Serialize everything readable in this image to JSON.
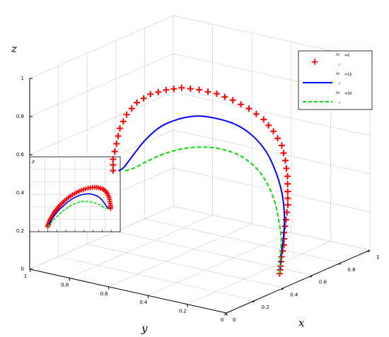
{
  "chart_data": {
    "type": "line",
    "axes": {
      "x": {
        "label": "x",
        "range": [
          0,
          1
        ],
        "ticks": [
          "0",
          "0.2",
          "0.4",
          "0.6",
          "0.8",
          "1"
        ]
      },
      "y": {
        "label": "y",
        "range": [
          0,
          1
        ],
        "ticks": [
          "0",
          "0.2",
          "0.4",
          "0.6",
          "0.8",
          "1"
        ]
      },
      "z": {
        "label": "z",
        "range": [
          0,
          1
        ],
        "ticks": [
          "0",
          "0.2",
          "0.4",
          "0.6",
          "0.8",
          "1"
        ]
      }
    },
    "grid": true,
    "legend_position": "top-right",
    "series": [
      {
        "name": "M_r = 0",
        "color": "#ff0000",
        "style": "markers",
        "marker": "plus",
        "points": [
          [
            0.44,
            0.05,
            0.05
          ],
          [
            0.46,
            0.06,
            0.08
          ],
          [
            0.48,
            0.07,
            0.12
          ],
          [
            0.51,
            0.08,
            0.17
          ],
          [
            0.54,
            0.1,
            0.22
          ],
          [
            0.58,
            0.12,
            0.27
          ],
          [
            0.62,
            0.14,
            0.33
          ],
          [
            0.66,
            0.17,
            0.38
          ],
          [
            0.7,
            0.2,
            0.44
          ],
          [
            0.74,
            0.24,
            0.5
          ],
          [
            0.77,
            0.28,
            0.56
          ],
          [
            0.78,
            0.33,
            0.62
          ],
          [
            0.78,
            0.38,
            0.67
          ],
          [
            0.76,
            0.44,
            0.72
          ],
          [
            0.73,
            0.5,
            0.76
          ],
          [
            0.7,
            0.56,
            0.79
          ],
          [
            0.66,
            0.62,
            0.81
          ],
          [
            0.62,
            0.68,
            0.82
          ],
          [
            0.58,
            0.73,
            0.81
          ],
          [
            0.54,
            0.78,
            0.79
          ],
          [
            0.5,
            0.82,
            0.75
          ],
          [
            0.47,
            0.85,
            0.69
          ],
          [
            0.45,
            0.87,
            0.62
          ],
          [
            0.44,
            0.88,
            0.54
          ],
          [
            0.43,
            0.89,
            0.46
          ],
          [
            0.43,
            0.89,
            0.4
          ]
        ]
      },
      {
        "name": "M_r = 15",
        "color": "#0000ff",
        "style": "solid",
        "points": [
          [
            0.44,
            0.05,
            0.05
          ],
          [
            0.49,
            0.08,
            0.12
          ],
          [
            0.55,
            0.11,
            0.2
          ],
          [
            0.61,
            0.15,
            0.28
          ],
          [
            0.66,
            0.2,
            0.37
          ],
          [
            0.7,
            0.26,
            0.45
          ],
          [
            0.72,
            0.32,
            0.53
          ],
          [
            0.72,
            0.39,
            0.6
          ],
          [
            0.7,
            0.46,
            0.65
          ],
          [
            0.66,
            0.53,
            0.68
          ],
          [
            0.62,
            0.6,
            0.69
          ],
          [
            0.58,
            0.67,
            0.67
          ],
          [
            0.54,
            0.73,
            0.63
          ],
          [
            0.5,
            0.78,
            0.56
          ],
          [
            0.47,
            0.82,
            0.48
          ],
          [
            0.45,
            0.85,
            0.42
          ],
          [
            0.44,
            0.87,
            0.4
          ]
        ]
      },
      {
        "name": "M_r = 30",
        "color": "#00e000",
        "style": "dashed",
        "points": [
          [
            0.44,
            0.05,
            0.05
          ],
          [
            0.5,
            0.09,
            0.11
          ],
          [
            0.56,
            0.13,
            0.18
          ],
          [
            0.61,
            0.18,
            0.25
          ],
          [
            0.65,
            0.23,
            0.32
          ],
          [
            0.68,
            0.29,
            0.39
          ],
          [
            0.69,
            0.35,
            0.45
          ],
          [
            0.68,
            0.42,
            0.5
          ],
          [
            0.65,
            0.49,
            0.53
          ],
          [
            0.61,
            0.56,
            0.54
          ],
          [
            0.57,
            0.63,
            0.53
          ],
          [
            0.53,
            0.7,
            0.5
          ],
          [
            0.5,
            0.76,
            0.46
          ],
          [
            0.47,
            0.81,
            0.42
          ],
          [
            0.45,
            0.85,
            0.4
          ]
        ]
      }
    ],
    "inset": {
      "axis_label": "z",
      "description_series": [
        "M_r = 0",
        "M_r = 15",
        "M_r = 30"
      ]
    }
  },
  "legend": [
    {
      "symbol": "M",
      "sub": "r",
      "value": "=0"
    },
    {
      "symbol": "M",
      "sub": "r",
      "value": "=15"
    },
    {
      "symbol": "M",
      "sub": "r",
      "value": "=30"
    }
  ]
}
